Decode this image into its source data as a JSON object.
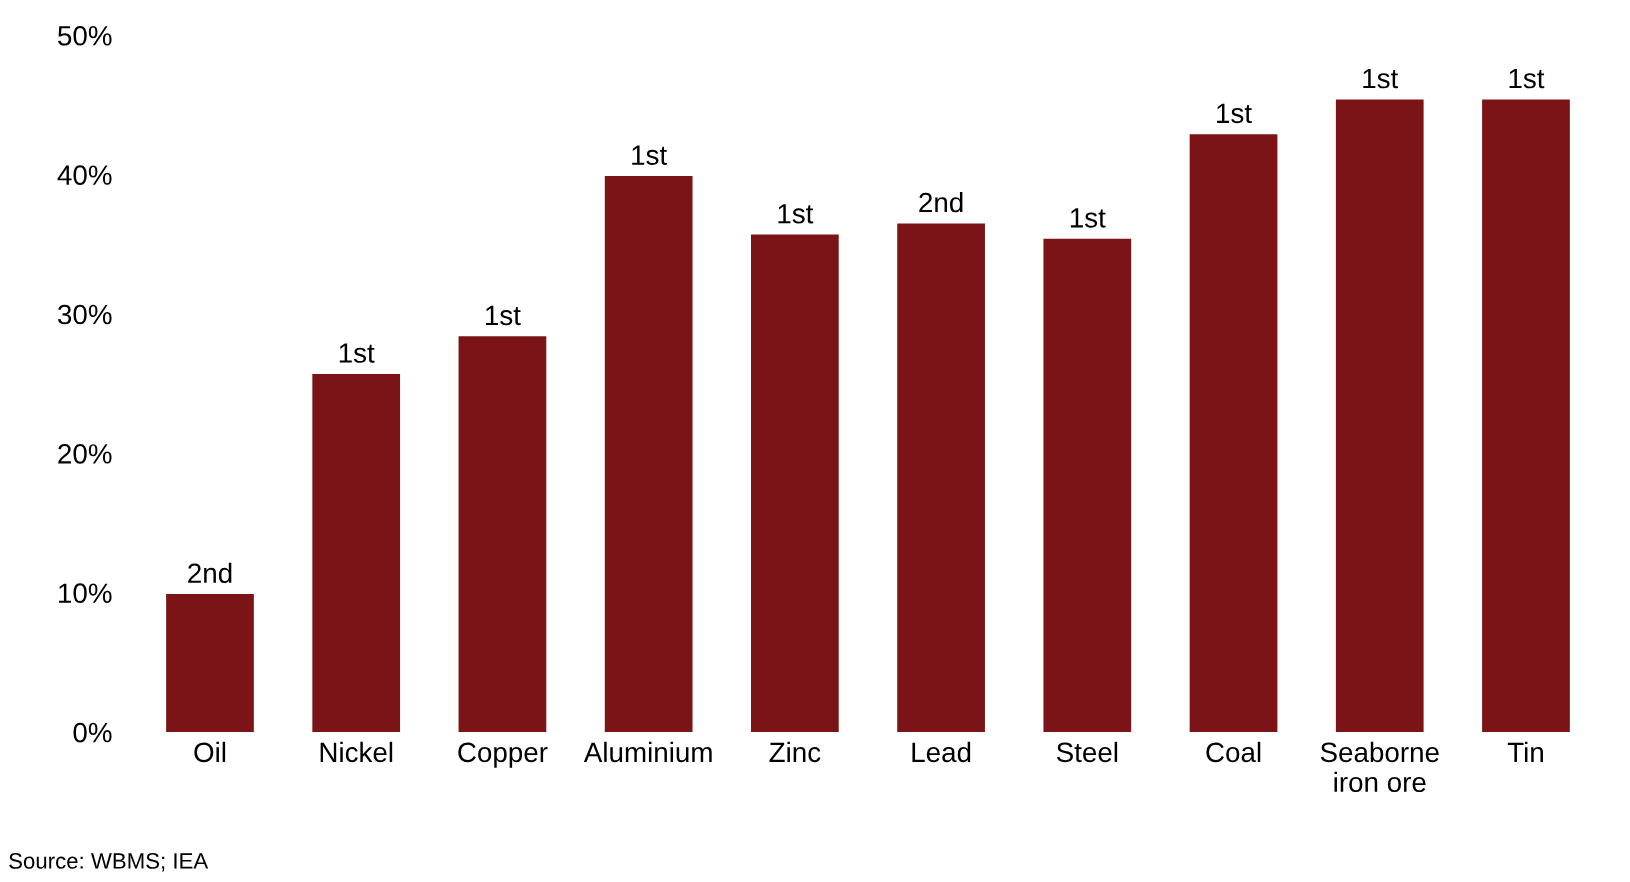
{
  "chart_data": {
    "type": "bar",
    "categories": [
      "Oil",
      "Nickel",
      "Copper",
      "Aluminium",
      "Zinc",
      "Lead",
      "Steel",
      "Coal",
      "Seaborne\niron ore",
      "Tin"
    ],
    "values": [
      9.9,
      25.7,
      28.4,
      39.9,
      35.7,
      36.5,
      35.4,
      42.9,
      45.4,
      45.4
    ],
    "color": "#7b1416",
    "ylim": [
      0,
      50
    ],
    "yticks": [
      {
        "value": 0,
        "label": "0%"
      },
      {
        "value": 10,
        "label": "10%"
      },
      {
        "value": 20,
        "label": "20%"
      },
      {
        "value": 30,
        "label": "30%"
      },
      {
        "value": 40,
        "label": "40%"
      },
      {
        "value": 50,
        "label": "50%"
      }
    ],
    "grid": false,
    "annotations": [
      {
        "text": "2nd",
        "x": "Oil",
        "y": 9.9
      },
      {
        "text": "1st",
        "x": "Nickel",
        "y": 25.7
      },
      {
        "text": "1st",
        "x": "Copper",
        "y": 28.4
      },
      {
        "text": "1st",
        "x": "Aluminium",
        "y": 39.9
      },
      {
        "text": "1st",
        "x": "Zinc",
        "y": 35.7
      },
      {
        "text": "2nd",
        "x": "Lead",
        "y": 36.5
      },
      {
        "text": "1st",
        "x": "Steel",
        "y": 35.4
      },
      {
        "text": "1st",
        "x": "Coal",
        "y": 42.9
      },
      {
        "text": "1st",
        "x": "Seaborne\niron ore",
        "y": 45.4
      },
      {
        "text": "1st",
        "x": "Tin",
        "y": 45.4
      },
      "Source: WBMS; IEA"
    ]
  }
}
